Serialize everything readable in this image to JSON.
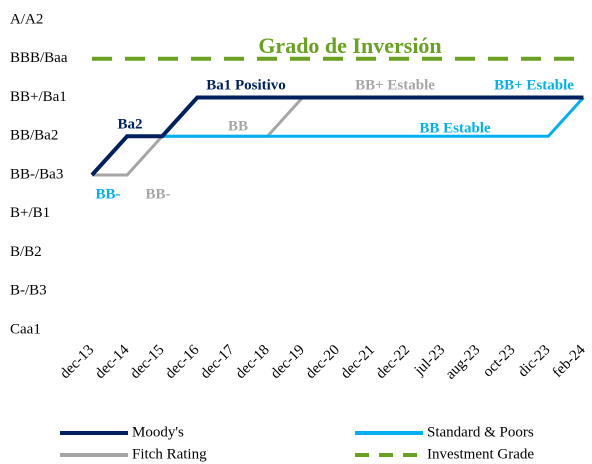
{
  "chart_data": {
    "type": "line",
    "categories": [
      "dec-13",
      "dec-14",
      "dec-15",
      "dec-16",
      "dec-17",
      "dec-18",
      "dec-19",
      "dec-20",
      "dec-21",
      "dec-22",
      "jul-23",
      "aug-23",
      "oct-23",
      "dic-23",
      "feb-24"
    ],
    "ylim": [
      0,
      8
    ],
    "yticks": [
      {
        "value": 0,
        "label": "Caa1"
      },
      {
        "value": 1,
        "label": "B-/B3"
      },
      {
        "value": 2,
        "label": "B/B2"
      },
      {
        "value": 3,
        "label": "B+/B1"
      },
      {
        "value": 4,
        "label": "BB-/Ba3"
      },
      {
        "value": 5,
        "label": "BB/Ba2"
      },
      {
        "value": 6,
        "label": "BB+/Ba1"
      },
      {
        "value": 7,
        "label": "BBB/Baa"
      },
      {
        "value": 8,
        "label": "A/A2"
      }
    ],
    "series": [
      {
        "name": "Moody's",
        "color": "#002060",
        "values": [
          4,
          5,
          5,
          6,
          6,
          6,
          6,
          6,
          6,
          6,
          6,
          6,
          6,
          6,
          6
        ]
      },
      {
        "name": "Standard & Poors",
        "color": "#00b0f0",
        "values": [
          4,
          5,
          5,
          5,
          5,
          5,
          5,
          5,
          5,
          5,
          5,
          5,
          5,
          5,
          6
        ]
      },
      {
        "name": "Fitch Rating",
        "color": "#a6a6a6",
        "values": [
          4,
          4,
          5,
          5,
          5,
          5,
          6,
          6,
          6,
          6,
          6,
          6,
          6,
          6,
          6
        ]
      },
      {
        "name": "Investment Grade",
        "color": "#6aa121",
        "dashed": true,
        "values": [
          7,
          7,
          7,
          7,
          7,
          7,
          7,
          7,
          7,
          7,
          7,
          7,
          7,
          7,
          7
        ]
      }
    ],
    "annotations": [
      {
        "text": "Grado de Inversión",
        "color": "#6aa121"
      },
      {
        "text": "Ba1 Positivo",
        "color": "#002060"
      },
      {
        "text": "BB+ Estable",
        "color": "#a6a6a6"
      },
      {
        "text": "BB+ Estable",
        "color": "#00b0f0"
      },
      {
        "text": "Ba2",
        "color": "#002060"
      },
      {
        "text": "BB",
        "color": "#a6a6a6"
      },
      {
        "text": "BB Estable",
        "color": "#00b0f0"
      },
      {
        "text": "BB-",
        "color": "#00b0f0"
      },
      {
        "text": "BB-",
        "color": "#a6a6a6"
      }
    ]
  }
}
